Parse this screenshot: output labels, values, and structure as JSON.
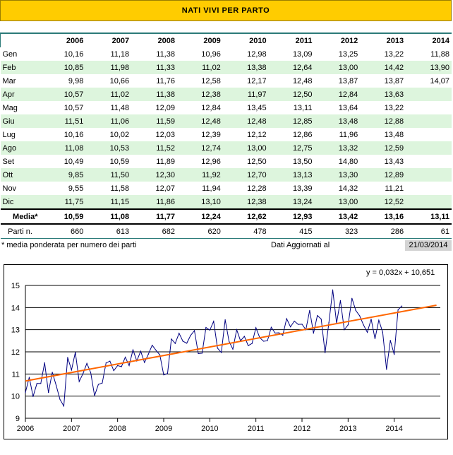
{
  "title": "NATI VIVI PER PARTO",
  "table": {
    "years": [
      "2006",
      "2007",
      "2008",
      "2009",
      "2010",
      "2011",
      "2012",
      "2013",
      "2014"
    ],
    "rows": [
      {
        "month": "Gen",
        "values": [
          "10,16",
          "11,18",
          "11,38",
          "10,96",
          "12,98",
          "13,09",
          "13,25",
          "13,22",
          "11,88"
        ]
      },
      {
        "month": "Feb",
        "values": [
          "10,85",
          "11,98",
          "11,33",
          "11,02",
          "13,38",
          "12,64",
          "13,00",
          "14,42",
          "13,90"
        ]
      },
      {
        "month": "Mar",
        "values": [
          "9,98",
          "10,66",
          "11,76",
          "12,58",
          "12,17",
          "12,48",
          "13,87",
          "13,87",
          "14,07"
        ]
      },
      {
        "month": "Apr",
        "values": [
          "10,57",
          "11,02",
          "11,38",
          "12,38",
          "11,97",
          "12,50",
          "12,84",
          "13,63",
          ""
        ]
      },
      {
        "month": "Mag",
        "values": [
          "10,57",
          "11,48",
          "12,09",
          "12,84",
          "13,45",
          "13,11",
          "13,64",
          "13,22",
          ""
        ]
      },
      {
        "month": "Giu",
        "values": [
          "11,51",
          "11,06",
          "11,59",
          "12,48",
          "12,48",
          "12,85",
          "13,48",
          "12,88",
          ""
        ]
      },
      {
        "month": "Lug",
        "values": [
          "10,16",
          "10,02",
          "12,03",
          "12,39",
          "12,12",
          "12,86",
          "11,96",
          "13,48",
          ""
        ]
      },
      {
        "month": "Ago",
        "values": [
          "11,08",
          "10,53",
          "11,52",
          "12,74",
          "13,00",
          "12,75",
          "13,32",
          "12,59",
          ""
        ]
      },
      {
        "month": "Set",
        "values": [
          "10,49",
          "10,59",
          "11,89",
          "12,96",
          "12,50",
          "13,50",
          "14,80",
          "13,43",
          ""
        ]
      },
      {
        "month": "Ott",
        "values": [
          "9,85",
          "11,50",
          "12,30",
          "11,92",
          "12,70",
          "13,13",
          "13,30",
          "12,89",
          ""
        ]
      },
      {
        "month": "Nov",
        "values": [
          "9,55",
          "11,58",
          "12,07",
          "11,94",
          "12,28",
          "13,39",
          "14,32",
          "11,21",
          ""
        ]
      },
      {
        "month": "Dic",
        "values": [
          "11,75",
          "11,15",
          "11,86",
          "13,10",
          "12,38",
          "13,24",
          "13,00",
          "12,52",
          ""
        ]
      }
    ],
    "media_label": "Media*",
    "media": [
      "10,59",
      "11,08",
      "11,77",
      "12,24",
      "12,62",
      "12,93",
      "13,42",
      "13,16",
      "13,11"
    ],
    "parti_label": "Parti n.",
    "parti": [
      "660",
      "613",
      "682",
      "620",
      "478",
      "415",
      "323",
      "286",
      "61"
    ]
  },
  "footnote": "* media ponderata per numero dei parti",
  "updated_label": "Dati Aggiornati al",
  "updated_date": "21/03/2014",
  "chart_data": {
    "type": "line",
    "title": "",
    "xlabel": "",
    "ylabel": "",
    "xlim": [
      2006,
      2015
    ],
    "ylim": [
      9,
      15
    ],
    "x_ticks": [
      "2006",
      "2007",
      "2008",
      "2009",
      "2010",
      "2011",
      "2012",
      "2013",
      "2014"
    ],
    "y_ticks": [
      "9",
      "10",
      "11",
      "12",
      "13",
      "14",
      "15"
    ],
    "grid": "horizontal",
    "series": [
      {
        "color": "#000080",
        "values": [
          10.16,
          10.85,
          9.98,
          10.57,
          10.57,
          11.51,
          10.16,
          11.08,
          10.49,
          9.85,
          9.55,
          11.75,
          11.18,
          11.98,
          10.66,
          11.02,
          11.48,
          11.06,
          10.02,
          10.53,
          10.59,
          11.5,
          11.58,
          11.15,
          11.38,
          11.33,
          11.76,
          11.38,
          12.09,
          11.59,
          12.03,
          11.52,
          11.89,
          12.3,
          12.07,
          11.86,
          10.96,
          11.02,
          12.58,
          12.38,
          12.84,
          12.48,
          12.39,
          12.74,
          12.96,
          11.92,
          11.94,
          13.1,
          12.98,
          13.38,
          12.17,
          11.97,
          13.45,
          12.48,
          12.12,
          13.0,
          12.5,
          12.7,
          12.28,
          12.38,
          13.09,
          12.64,
          12.48,
          12.5,
          13.11,
          12.85,
          12.86,
          12.75,
          13.5,
          13.13,
          13.39,
          13.24,
          13.25,
          13.0,
          13.87,
          12.84,
          13.64,
          13.48,
          11.96,
          13.32,
          14.8,
          13.3,
          14.32,
          13.0,
          13.22,
          14.42,
          13.87,
          13.63,
          13.22,
          12.88,
          13.48,
          12.59,
          13.43,
          12.89,
          11.21,
          12.52,
          11.88,
          13.9,
          14.07
        ]
      },
      {
        "color": "#ff6600",
        "trendline": {
          "slope": 0.032,
          "intercept": 10.651,
          "x_start": 1,
          "x_end": 108
        }
      }
    ],
    "annotation": "y = 0,032x + 10,651",
    "colors": {
      "series": "#000080",
      "trend": "#ff6600",
      "header": "#ffcc00",
      "stripe": "#ddf5dd"
    }
  }
}
